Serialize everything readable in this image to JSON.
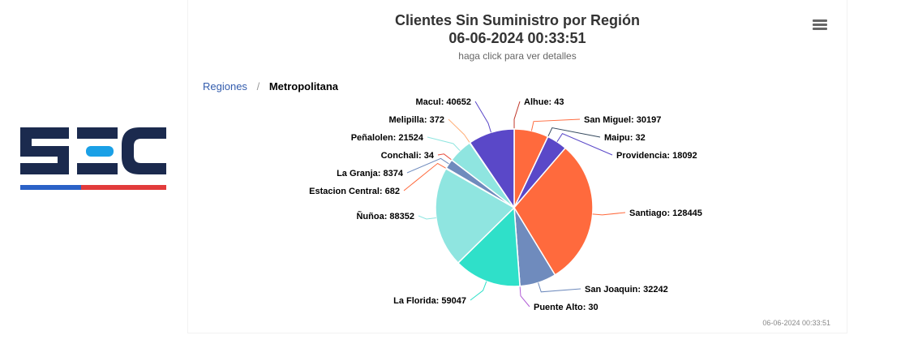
{
  "chart_data": {
    "type": "pie",
    "title": "Clientes Sin Suministro por Región",
    "subtitle_date": "06-06-2024 00:33:51",
    "subtitle": "haga click para ver detalles",
    "slices": [
      {
        "name": "Alhue",
        "value": 43,
        "color": "#c0392b"
      },
      {
        "name": "San Miguel",
        "value": 30197,
        "color": "#ff6a3d"
      },
      {
        "name": "Maipu",
        "value": 32,
        "color": "#34495e"
      },
      {
        "name": "Providencia",
        "value": 18092,
        "color": "#5a48c8"
      },
      {
        "name": "Santiago",
        "value": 128445,
        "color": "#ff6a3d"
      },
      {
        "name": "San Joaquin",
        "value": 32242,
        "color": "#6f8bbd"
      },
      {
        "name": "Puente Alto",
        "value": 30,
        "color": "#b15bd6"
      },
      {
        "name": "La Florida",
        "value": 59047,
        "color": "#2fe0c9"
      },
      {
        "name": "Ñuñoa",
        "value": 88352,
        "color": "#8fe5e0"
      },
      {
        "name": "Estacion Central",
        "value": 682,
        "color": "#ff6a3d"
      },
      {
        "name": "La Granja",
        "value": 8374,
        "color": "#6f8bbd"
      },
      {
        "name": "Conchali",
        "value": 34,
        "color": "#e74c3c"
      },
      {
        "name": "Peñalolen",
        "value": 21524,
        "color": "#8fe5e0"
      },
      {
        "name": "Melipilla",
        "value": 372,
        "color": "#ffb07a"
      },
      {
        "name": "Macul",
        "value": 40652,
        "color": "#5a48c8"
      }
    ]
  },
  "breadcrumb": {
    "root": "Regiones",
    "separator": "/",
    "current": "Metropolitana"
  },
  "credit": "06-06-2024 00:33:51",
  "logo": {
    "text": "SEC",
    "colors": {
      "primary": "#1b2a4e",
      "accent": "#1aa0e6",
      "stripe_blue": "#2b62c7",
      "stripe_red": "#e23b3b"
    }
  }
}
